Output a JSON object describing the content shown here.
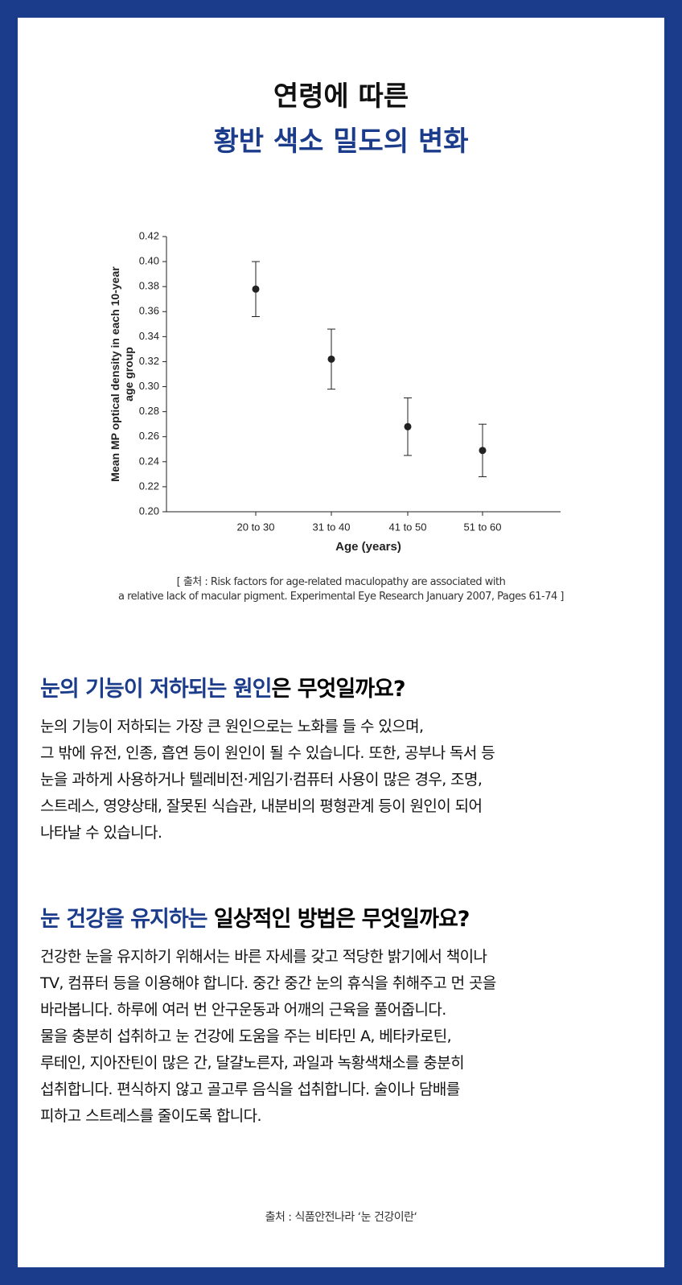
{
  "header": {
    "title_line1": "연령에 따른",
    "title_line2": "황반 색소 밀도의 변화"
  },
  "chart_data": {
    "type": "errorbar",
    "ylabel": "Mean MP optical density in each 10-year\nage group",
    "xlabel": "Age (years)",
    "categories": [
      "20 to 30",
      "31 to 40",
      "41 to 50",
      "51 to 60"
    ],
    "values": [
      0.378,
      0.322,
      0.268,
      0.249
    ],
    "errors": [
      0.022,
      0.024,
      0.023,
      0.021
    ],
    "color": "#222222",
    "ylim": [
      0.2,
      0.42
    ],
    "yticks": [
      {
        "value": 0.2,
        "label": "0.20"
      },
      0.22,
      0.24,
      0.26,
      0.28,
      {
        "value": 0.3,
        "label": "0.30"
      },
      0.32,
      0.34,
      0.36,
      0.38,
      {
        "value": 0.4,
        "label": "0.40"
      },
      0.42
    ]
  },
  "chart_source": [
    "[ 출처 : Risk factors for age-related maculopathy are associated with",
    "a relative lack of macular pigment. Experimental Eye Research January 2007, Pages 61-74 ]"
  ],
  "sections": [
    {
      "heading_blue": "눈의 기능이 저하되는 원인",
      "heading_black": "은 무엇일까요?",
      "lines": [
        "눈의 기능이 저하되는 가장 큰 원인으로는 노화를 들 수 있으며,",
        "그 밖에 유전, 인종, 흡연 등이 원인이 될 수 있습니다. 또한, 공부나 독서 등",
        "눈을 과하게 사용하거나 텔레비전·게임기·컴퓨터 사용이 많은 경우, 조명,",
        "스트레스, 영양상태, 잘못된 식습관, 내분비의 평형관계 등이 원인이 되어",
        "나타날 수 있습니다."
      ]
    },
    {
      "heading_blue": "눈 건강을 유지하는",
      "heading_black": " 일상적인 방법은 무엇일까요?",
      "lines": [
        "건강한 눈을 유지하기 위해서는 바른 자세를 갖고 적당한 밝기에서 책이나",
        "TV, 컴퓨터 등을 이용해야 합니다. 중간 중간 눈의 휴식을 취해주고 먼 곳을",
        "바라봅니다. 하루에 여러 번 안구운동과 어깨의 근육을 풀어줍니다.",
        "물을 충분히 섭취하고 눈 건강에 도움을 주는 비타민 A, 베타카로틴,",
        "루테인, 지아잔틴이 많은 간, 달걀노른자, 과일과 녹황색채소를 충분히",
        "섭취합니다. 편식하지 않고 골고루 음식을 섭취합니다. 술이나 담배를",
        "피하고 스트레스를 줄이도록 합니다."
      ]
    }
  ],
  "footer_source": "출처 : 식품안전나라 ‘눈 건강이란‘"
}
